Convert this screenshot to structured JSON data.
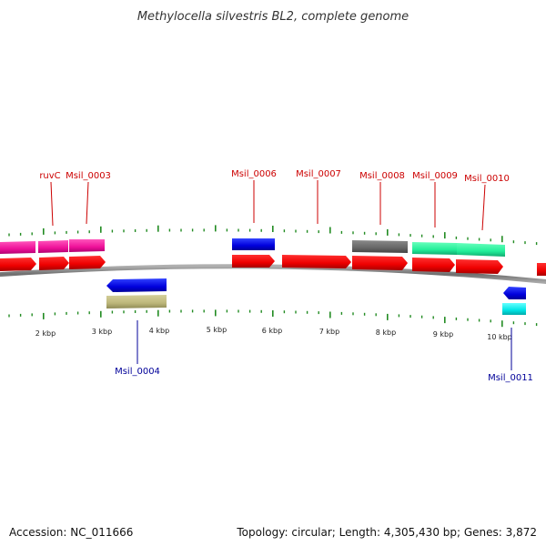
{
  "title": "Methylocella silvestris BL2, complete genome",
  "footer": {
    "accession": "Accession: NC_011666",
    "info": "Topology: circular; Length: 4,305,430 bp; Genes: 3,872"
  },
  "colors": {
    "forward_label": "#cc0000",
    "reverse_label": "#000099",
    "tick": "#228b22",
    "backbone": "#777777"
  },
  "scale_labels": [
    "2 kbp",
    "3 kbp",
    "4 kbp",
    "5 kbp",
    "6 kbp",
    "7 kbp",
    "8 kbp",
    "9 kbp",
    "10 kbp"
  ],
  "gene_labels": [
    {
      "name": "ruvC",
      "strand": "forward"
    },
    {
      "name": "Msil_0003",
      "strand": "forward"
    },
    {
      "name": "Msil_0006",
      "strand": "forward"
    },
    {
      "name": "Msil_0007",
      "strand": "forward"
    },
    {
      "name": "Msil_0008",
      "strand": "forward"
    },
    {
      "name": "Msil_0009",
      "strand": "forward"
    },
    {
      "name": "Msil_0010",
      "strand": "forward"
    },
    {
      "name": "Msil_0004",
      "strand": "reverse"
    },
    {
      "name": "Msil_0011",
      "strand": "reverse"
    }
  ]
}
